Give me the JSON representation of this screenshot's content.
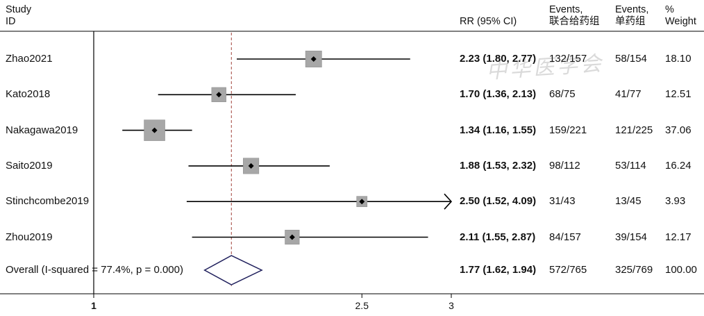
{
  "headers": {
    "study_1": "Study",
    "study_2": "ID",
    "rr": "RR (95% CI)",
    "ev1_1": "Events,",
    "ev1_2": "联合给药组",
    "ev2_1": "Events,",
    "ev2_2": "单药组",
    "w_1": "%",
    "w_2": "Weight"
  },
  "watermark": "中华医学会",
  "chart_data": {
    "type": "forest",
    "xlabel": "",
    "xticks": [
      1,
      2.5,
      3
    ],
    "xtick_labels": [
      "1",
      "2.5",
      "3"
    ],
    "xlim": [
      1,
      3
    ],
    "null_line": 1,
    "overall_line": 1.77,
    "rows": [
      {
        "study": "Zhao2021",
        "rr": 2.23,
        "lo": 1.8,
        "hi": 2.77,
        "rr_text": "2.23 (1.80, 2.77)",
        "events1": "132/157",
        "events2": "58/154",
        "weight": "18.10",
        "weight_val": 18.1,
        "arrow": false
      },
      {
        "study": "Kato2018",
        "rr": 1.7,
        "lo": 1.36,
        "hi": 2.13,
        "rr_text": "1.70 (1.36, 2.13)",
        "events1": "68/75",
        "events2": "41/77",
        "weight": "12.51",
        "weight_val": 12.51,
        "arrow": false
      },
      {
        "study": "Nakagawa2019",
        "rr": 1.34,
        "lo": 1.16,
        "hi": 1.55,
        "rr_text": "1.34 (1.16, 1.55)",
        "events1": "159/221",
        "events2": "121/225",
        "weight": "37.06",
        "weight_val": 37.06,
        "arrow": false
      },
      {
        "study": "Saito2019",
        "rr": 1.88,
        "lo": 1.53,
        "hi": 2.32,
        "rr_text": "1.88 (1.53, 2.32)",
        "events1": "98/112",
        "events2": "53/114",
        "weight": "16.24",
        "weight_val": 16.24,
        "arrow": false
      },
      {
        "study": "Stinchcombe2019",
        "rr": 2.5,
        "lo": 1.52,
        "hi": 4.09,
        "rr_text": "2.50 (1.52, 4.09)",
        "events1": "31/43",
        "events2": "13/45",
        "weight": "3.93",
        "weight_val": 3.93,
        "arrow": true
      },
      {
        "study": "Zhou2019",
        "rr": 2.11,
        "lo": 1.55,
        "hi": 2.87,
        "rr_text": "2.11 (1.55, 2.87)",
        "events1": "84/157",
        "events2": "39/154",
        "weight": "12.17",
        "weight_val": 12.17,
        "arrow": false
      }
    ],
    "overall": {
      "label": "Overall  (I-squared = 77.4%, p = 0.000)",
      "rr": 1.77,
      "lo": 1.62,
      "hi": 1.94,
      "rr_text": "1.77 (1.62, 1.94)",
      "events1": "572/765",
      "events2": "325/769",
      "weight": "100.00"
    }
  }
}
